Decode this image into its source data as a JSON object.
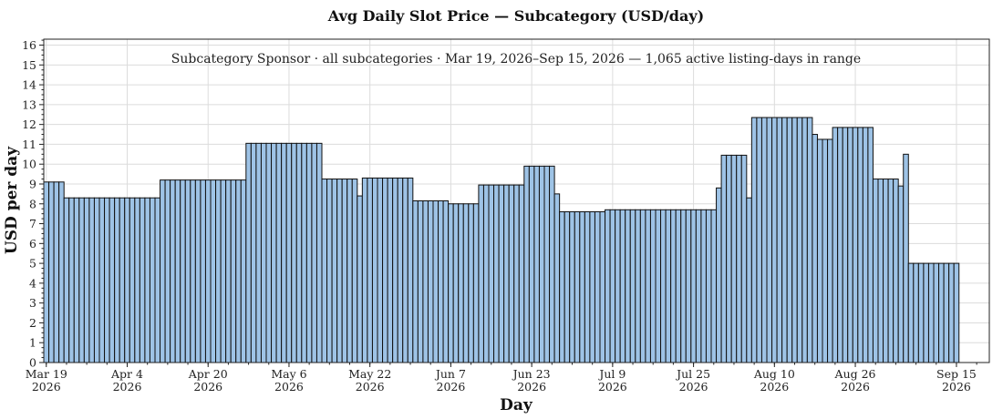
{
  "chart_data": {
    "type": "bar",
    "title": "Avg Daily Slot Price — Subcategory (USD/day)",
    "subtitle": "Subcategory Sponsor · all subcategories · Mar 19, 2026–Sep 15, 2026 — 1,065 active listing-days in range",
    "xlabel": "Day",
    "ylabel": "USD per day",
    "start_date": "2026-03-19",
    "xlim": [
      "2026-03-19",
      "2026-09-22"
    ],
    "ylim": [
      0,
      16.3
    ],
    "grid": true,
    "y_ticks": [
      0,
      1,
      2,
      3,
      4,
      5,
      6,
      7,
      8,
      9,
      10,
      11,
      12,
      13,
      14,
      15,
      16
    ],
    "x_ticks": [
      {
        "date": "2026-03-19",
        "label": "Mar 19",
        "year": "2026"
      },
      {
        "date": "2026-04-04",
        "label": "Apr 4",
        "year": "2026"
      },
      {
        "date": "2026-04-20",
        "label": "Apr 20",
        "year": "2026"
      },
      {
        "date": "2026-05-06",
        "label": "May 6",
        "year": "2026"
      },
      {
        "date": "2026-05-22",
        "label": "May 22",
        "year": "2026"
      },
      {
        "date": "2026-06-07",
        "label": "Jun 7",
        "year": "2026"
      },
      {
        "date": "2026-06-23",
        "label": "Jun 23",
        "year": "2026"
      },
      {
        "date": "2026-07-09",
        "label": "Jul 9",
        "year": "2026"
      },
      {
        "date": "2026-07-25",
        "label": "Jul 25",
        "year": "2026"
      },
      {
        "date": "2026-08-10",
        "label": "Aug 10",
        "year": "2026"
      },
      {
        "date": "2026-08-26",
        "label": "Aug 26",
        "year": "2026"
      },
      {
        "date": "2026-09-15",
        "label": "Sep 15",
        "year": "2026"
      }
    ],
    "segments": [
      {
        "from": "2026-03-19",
        "to": "2026-03-22",
        "value": 9.1
      },
      {
        "from": "2026-03-23",
        "to": "2026-04-10",
        "value": 8.3
      },
      {
        "from": "2026-04-11",
        "to": "2026-04-27",
        "value": 9.2
      },
      {
        "from": "2026-04-28",
        "to": "2026-05-12",
        "value": 11.05
      },
      {
        "from": "2026-05-13",
        "to": "2026-05-19",
        "value": 9.25
      },
      {
        "from": "2026-05-20",
        "to": "2026-05-20",
        "value": 8.4
      },
      {
        "from": "2026-05-21",
        "to": "2026-05-30",
        "value": 9.3
      },
      {
        "from": "2026-05-31",
        "to": "2026-06-06",
        "value": 8.15
      },
      {
        "from": "2026-06-07",
        "to": "2026-06-12",
        "value": 8.0
      },
      {
        "from": "2026-06-13",
        "to": "2026-06-21",
        "value": 8.95
      },
      {
        "from": "2026-06-22",
        "to": "2026-06-27",
        "value": 9.9
      },
      {
        "from": "2026-06-28",
        "to": "2026-06-28",
        "value": 8.5
      },
      {
        "from": "2026-06-29",
        "to": "2026-07-07",
        "value": 7.6
      },
      {
        "from": "2026-07-08",
        "to": "2026-07-29",
        "value": 7.7
      },
      {
        "from": "2026-07-30",
        "to": "2026-07-30",
        "value": 8.8
      },
      {
        "from": "2026-07-31",
        "to": "2026-08-04",
        "value": 10.45
      },
      {
        "from": "2026-08-05",
        "to": "2026-08-05",
        "value": 8.3
      },
      {
        "from": "2026-08-06",
        "to": "2026-08-17",
        "value": 12.35
      },
      {
        "from": "2026-08-18",
        "to": "2026-08-18",
        "value": 11.5
      },
      {
        "from": "2026-08-19",
        "to": "2026-08-21",
        "value": 11.25
      },
      {
        "from": "2026-08-22",
        "to": "2026-08-29",
        "value": 11.85
      },
      {
        "from": "2026-08-30",
        "to": "2026-09-03",
        "value": 9.25
      },
      {
        "from": "2026-09-04",
        "to": "2026-09-04",
        "value": 8.9
      },
      {
        "from": "2026-09-05",
        "to": "2026-09-05",
        "value": 10.5
      },
      {
        "from": "2026-09-06",
        "to": "2026-09-15",
        "value": 5.0
      }
    ]
  }
}
